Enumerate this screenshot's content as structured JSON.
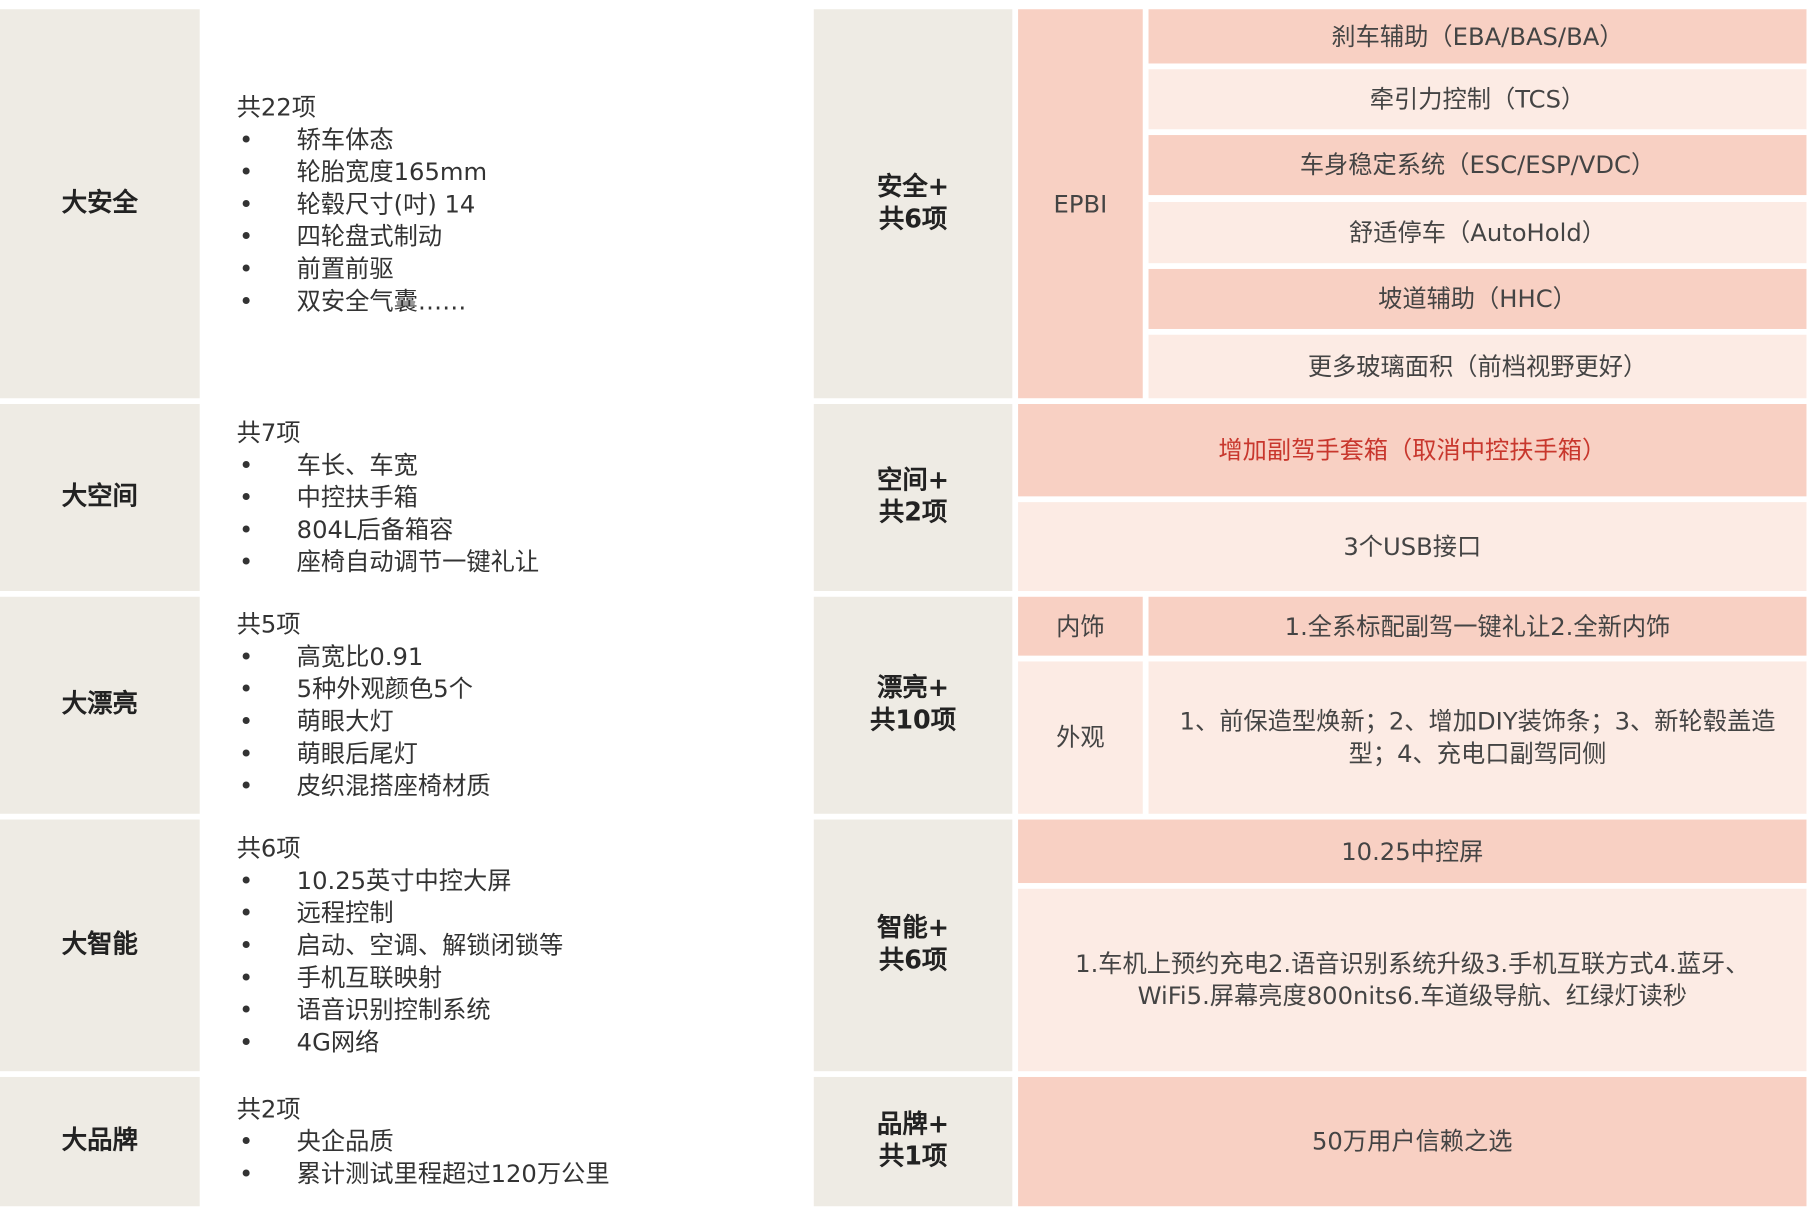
{
  "left": [
    {
      "category": "大安全",
      "count": "共22项",
      "items": [
        "轿车体态",
        "轮胎宽度165mm",
        "轮毂尺寸(吋) 14",
        "四轮盘式制动",
        "前置前驱",
        "双安全气囊……"
      ]
    },
    {
      "category": "大空间",
      "count": "共7项",
      "items": [
        "车长、车宽",
        "中控扶手箱",
        "804L后备箱容",
        "座椅自动调节一键礼让"
      ]
    },
    {
      "category": "大漂亮",
      "count": "共5项",
      "items": [
        "高宽比0.91",
        "5种外观颜色5个",
        "萌眼大灯",
        "萌眼后尾灯",
        "皮织混搭座椅材质"
      ]
    },
    {
      "category": "大智能",
      "count": "共6项",
      "items": [
        "10.25英寸中控大屏",
        "远程控制",
        "启动、空调、解锁闭锁等",
        "手机互联映射",
        "语音识别控制系统",
        "4G网络"
      ]
    },
    {
      "category": "大品牌",
      "count": "共2项",
      "items": [
        "央企品质",
        "累计测试里程超过120万公里"
      ]
    }
  ],
  "right": {
    "safety": {
      "label1": "安全+",
      "label2": "共6项",
      "sub": "EPBI",
      "items": [
        "刹车辅助（EBA/BAS/BA）",
        "牵引力控制（TCS）",
        "车身稳定系统（ESC/ESP/VDC）",
        "舒适停车（AutoHold）",
        "坡道辅助（HHC）",
        "更多玻璃面积（前档视野更好）"
      ]
    },
    "space": {
      "label1": "空间+",
      "label2": "共2项",
      "items": [
        "增加副驾手套箱（取消中控扶手箱）",
        "3个USB接口"
      ]
    },
    "beauty": {
      "label1": "漂亮+",
      "label2": "共10项",
      "interior_label": "内饰",
      "interior": "1.全系标配副驾一键礼让2.全新内饰",
      "exterior_label": "外观",
      "exterior": "1、前保造型焕新；2、增加DIY装饰条；3、新轮毂盖造型；4、充电口副驾同侧"
    },
    "smart": {
      "label1": "智能+",
      "label2": "共6项",
      "items": [
        "10.25中控屏",
        "1.车机上预约充电2.语音识别系统升级3.手机互联方式4.蓝牙、WiFi5.屏幕亮度800nits6.车道级导航、红绿灯读秒"
      ]
    },
    "brand": {
      "label1": "品牌+",
      "label2": "共1项",
      "items": [
        "50万用户信赖之选"
      ]
    }
  },
  "colors": {
    "label_bg": "#eeebe4",
    "salmon": "#f8d0c3",
    "light": "#fcebe4",
    "highlight_text": "#c8372d"
  }
}
